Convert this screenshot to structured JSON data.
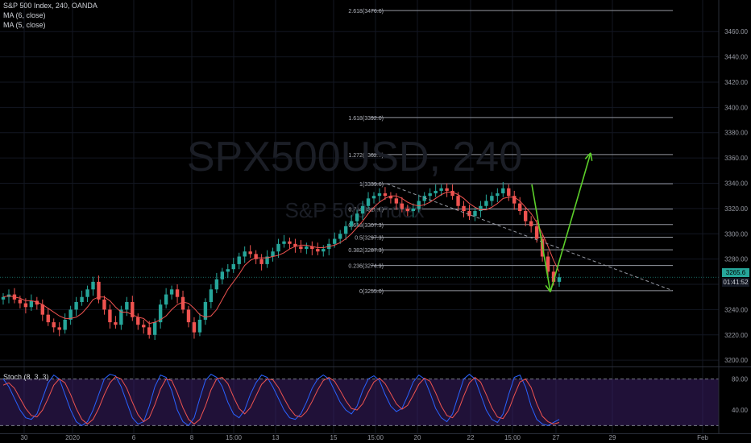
{
  "legend": {
    "symbol": "S&P 500 Index, 240, OANDA",
    "ma6": "MA (6, close)",
    "ma5": "MA (5, close)",
    "stoch": "Stoch (8, 3, 3)"
  },
  "watermark": {
    "ticker": "SPX500USD, 240",
    "name": "S&P 500 Index"
  },
  "current_price": "3265.6",
  "countdown": "01:41:52",
  "colors": {
    "background": "#000000",
    "up": "#26a69a",
    "down": "#ef5350",
    "ma": "#ef5350",
    "arrow": "#5ccf2a",
    "stoch_k": "#2962ff",
    "stoch_d": "#ef5350",
    "stoch_band": "#3b1f66"
  },
  "chart_data": {
    "type": "line",
    "title": "S&P 500 Index, 240, OANDA",
    "ylim": [
      3195,
      3485
    ],
    "y_ticks": [
      3200,
      3220,
      3240,
      3260,
      3280,
      3300,
      3320,
      3340,
      3360,
      3380,
      3400,
      3420,
      3440,
      3460
    ],
    "x_tick_labels": [
      "30",
      "2020",
      "6",
      "8",
      "15:00",
      "13",
      "15",
      "15:00",
      "20",
      "22",
      "15:00",
      "27",
      "29",
      "Feb"
    ],
    "fibonacci_levels": [
      {
        "label": "0(3255.0)",
        "value": 3255.0
      },
      {
        "label": "0.236(3274.9)",
        "value": 3274.9
      },
      {
        "label": "0.382(3287.3)",
        "value": 3287.3
      },
      {
        "label": "0.5(3297.3)",
        "value": 3297.3
      },
      {
        "label": "0.618(3307.3)",
        "value": 3307.3
      },
      {
        "label": "0.764(3319.6)",
        "value": 3319.6
      },
      {
        "label": "1(3339.6)",
        "value": 3339.6
      },
      {
        "label": "1.272(3362.7)",
        "value": 3362.7
      },
      {
        "label": "1.618(3392.0)",
        "value": 3392.0
      },
      {
        "label": "2.618(3476.6)",
        "value": 3476.6
      }
    ],
    "price_series": {
      "name": "SPX500USD 240",
      "close": [
        3250,
        3252,
        3248,
        3245,
        3242,
        3247,
        3244,
        3236,
        3230,
        3226,
        3224,
        3232,
        3240,
        3246,
        3250,
        3256,
        3262,
        3248,
        3240,
        3230,
        3228,
        3240,
        3246,
        3234,
        3228,
        3226,
        3220,
        3230,
        3244,
        3252,
        3256,
        3250,
        3240,
        3230,
        3222,
        3232,
        3246,
        3256,
        3264,
        3270,
        3272,
        3276,
        3282,
        3286,
        3284,
        3280,
        3276,
        3282,
        3286,
        3292,
        3294,
        3292,
        3290,
        3288,
        3290,
        3288,
        3286,
        3288,
        3292,
        3296,
        3300,
        3306,
        3310,
        3316,
        3322,
        3328,
        3330,
        3332,
        3330,
        3328,
        3324,
        3320,
        3318,
        3320,
        3326,
        3330,
        3332,
        3334,
        3336,
        3334,
        3330,
        3322,
        3318,
        3314,
        3318,
        3322,
        3326,
        3330,
        3332,
        3336,
        3330,
        3324,
        3318,
        3310,
        3306,
        3296,
        3282,
        3270,
        3262,
        3265.6
      ],
      "ma6": [
        3250,
        3251,
        3250,
        3249,
        3247,
        3247,
        3246,
        3244,
        3241,
        3238,
        3235,
        3233,
        3233,
        3234,
        3237,
        3242,
        3248,
        3250,
        3250,
        3247,
        3242,
        3238,
        3238,
        3236,
        3234,
        3233,
        3229,
        3230,
        3232,
        3235,
        3240,
        3244,
        3246,
        3245,
        3241,
        3236,
        3234,
        3235,
        3240,
        3248,
        3256,
        3262,
        3268,
        3275,
        3279,
        3281,
        3281,
        3281,
        3282,
        3283,
        3285,
        3288,
        3290,
        3291,
        3291,
        3290,
        3289,
        3289,
        3290,
        3291,
        3293,
        3296,
        3300,
        3305,
        3310,
        3316,
        3321,
        3325,
        3328,
        3330,
        3330,
        3328,
        3325,
        3323,
        3322,
        3323,
        3325,
        3328,
        3331,
        3333,
        3333,
        3331,
        3328,
        3324,
        3321,
        3319,
        3319,
        3321,
        3324,
        3328,
        3329,
        3329,
        3326,
        3321,
        3316,
        3309,
        3300,
        3290,
        3279,
        3270
      ]
    },
    "stochastic": {
      "name": "Stoch (8, 3, 3)",
      "ylim": [
        10,
        95
      ],
      "bands": [
        20,
        80
      ],
      "y_ticks": [
        40,
        80
      ],
      "k": [
        80,
        70,
        55,
        40,
        30,
        28,
        35,
        55,
        75,
        85,
        80,
        60,
        40,
        25,
        20,
        25,
        40,
        60,
        80,
        86,
        84,
        70,
        50,
        30,
        22,
        25,
        45,
        70,
        85,
        82,
        65,
        40,
        25,
        20,
        30,
        55,
        78,
        86,
        82,
        70,
        50,
        35,
        30,
        40,
        60,
        75,
        85,
        82,
        70,
        55,
        40,
        30,
        28,
        35,
        50,
        68,
        80,
        85,
        80,
        65,
        50,
        40,
        35,
        45,
        65,
        80,
        84,
        78,
        60,
        45,
        38,
        42,
        58,
        76,
        85,
        80,
        62,
        42,
        30,
        25,
        35,
        58,
        80,
        86,
        80,
        60,
        40,
        28,
        24,
        35,
        60,
        82,
        85,
        70,
        45,
        28,
        22,
        20,
        24,
        28
      ],
      "d": [
        72,
        75,
        68,
        55,
        42,
        33,
        31,
        40,
        55,
        72,
        80,
        75,
        60,
        42,
        28,
        22,
        28,
        42,
        60,
        75,
        83,
        80,
        68,
        50,
        34,
        25,
        30,
        47,
        67,
        80,
        78,
        62,
        43,
        28,
        22,
        28,
        45,
        66,
        80,
        82,
        74,
        57,
        42,
        35,
        43,
        58,
        73,
        80,
        79,
        69,
        55,
        42,
        33,
        31,
        38,
        51,
        66,
        78,
        82,
        77,
        65,
        52,
        42,
        40,
        48,
        63,
        76,
        81,
        74,
        61,
        48,
        41,
        46,
        59,
        73,
        81,
        77,
        62,
        45,
        33,
        30,
        39,
        58,
        75,
        82,
        76,
        60,
        43,
        31,
        29,
        40,
        59,
        76,
        80,
        69,
        48,
        32,
        25,
        22,
        24
      ]
    },
    "annotations": {
      "trendline": [
        [
          480,
          3339.6
        ],
        [
          835,
          3255.0
        ]
      ],
      "arrow_down": [
        [
          660,
          3339.0
        ],
        [
          683,
          3254.0
        ]
      ],
      "arrow_up": [
        [
          683,
          3254.0
        ],
        [
          733,
          3364.0
        ]
      ]
    }
  }
}
